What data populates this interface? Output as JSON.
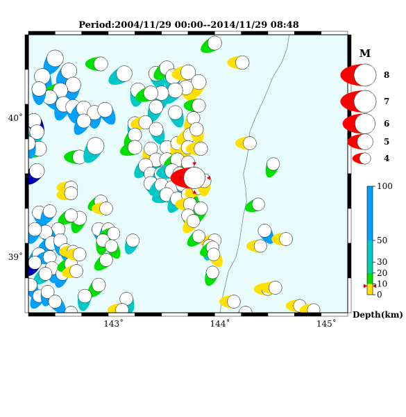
{
  "title": "Period:2004/11/29 00:00--2014/11/29 08:48",
  "map": {
    "lon_range": [
      142.2,
      145.2
    ],
    "lat_range": [
      38.6,
      40.6
    ],
    "lon_ticks": [
      {
        "value": 143,
        "label": "143˚"
      },
      {
        "value": 144,
        "label": "144˚"
      },
      {
        "value": 145,
        "label": "145˚"
      }
    ],
    "lat_ticks": [
      {
        "value": 40,
        "label": "40˚"
      },
      {
        "value": 39,
        "label": "39˚"
      }
    ],
    "ocean_color": "#e8fcfc",
    "coast_color": "#6e8c8c",
    "coastline": [
      [
        144.65,
        40.6
      ],
      [
        144.63,
        40.5
      ],
      [
        144.58,
        40.4
      ],
      [
        144.5,
        40.3
      ],
      [
        144.42,
        40.15
      ],
      [
        144.33,
        40.0
      ],
      [
        144.28,
        39.9
      ],
      [
        144.27,
        39.8
      ],
      [
        144.25,
        39.7
      ],
      [
        144.22,
        39.6
      ],
      [
        144.24,
        39.5
      ],
      [
        144.25,
        39.4
      ],
      [
        144.22,
        39.3
      ],
      [
        144.2,
        39.2
      ],
      [
        144.18,
        39.1
      ],
      [
        144.15,
        39.0
      ],
      [
        144.08,
        38.9
      ],
      [
        144.05,
        38.8
      ],
      [
        144.02,
        38.7
      ],
      [
        144.0,
        38.6
      ]
    ]
  },
  "depth_colors": {
    "shallow": "#ffe000",
    "d20": "#00e000",
    "d30": "#00c8c8",
    "d50": "#00a0ff",
    "deep": "#0000c0",
    "largest": "#ff0000"
  },
  "events": [
    {
      "lon": 142.45,
      "lat": 40.43,
      "mag": 5.2,
      "depth": "d50",
      "rot": 30
    },
    {
      "lon": 142.33,
      "lat": 40.3,
      "mag": 5.0,
      "depth": "d50",
      "rot": -20
    },
    {
      "lon": 142.58,
      "lat": 40.34,
      "mag": 5.0,
      "depth": "d50",
      "rot": 40
    },
    {
      "lon": 142.62,
      "lat": 40.24,
      "mag": 4.9,
      "depth": "d50",
      "rot": 10
    },
    {
      "lon": 142.5,
      "lat": 40.2,
      "mag": 4.8,
      "depth": "d20",
      "rot": 80
    },
    {
      "lon": 142.4,
      "lat": 40.15,
      "mag": 4.7,
      "depth": "d50",
      "rot": -40
    },
    {
      "lon": 142.53,
      "lat": 40.1,
      "mag": 4.9,
      "depth": "d50",
      "rot": 20
    },
    {
      "lon": 142.62,
      "lat": 40.08,
      "mag": 4.8,
      "depth": "d50",
      "rot": -10
    },
    {
      "lon": 142.72,
      "lat": 40.07,
      "mag": 4.8,
      "depth": "d50",
      "rot": 50
    },
    {
      "lon": 142.82,
      "lat": 40.04,
      "mag": 4.7,
      "depth": "d50",
      "rot": 0
    },
    {
      "lon": 142.72,
      "lat": 39.98,
      "mag": 4.6,
      "depth": "d50",
      "rot": 30
    },
    {
      "lon": 142.92,
      "lat": 40.06,
      "mag": 4.8,
      "depth": "d50",
      "rot": -30
    },
    {
      "lon": 142.88,
      "lat": 40.39,
      "mag": 4.6,
      "depth": "d20",
      "rot": 90
    },
    {
      "lon": 142.3,
      "lat": 40.21,
      "mag": 4.7,
      "depth": "d50",
      "rot": 0
    },
    {
      "lon": 142.25,
      "lat": 39.98,
      "mag": 4.8,
      "depth": "deep",
      "rot": -30
    },
    {
      "lon": 142.28,
      "lat": 39.9,
      "mag": 4.7,
      "depth": "d30",
      "rot": 20
    },
    {
      "lon": 142.3,
      "lat": 39.78,
      "mag": 4.8,
      "depth": "d20",
      "rot": 70
    },
    {
      "lon": 142.2,
      "lat": 39.82,
      "mag": 4.6,
      "depth": "d50",
      "rot": -10
    },
    {
      "lon": 142.28,
      "lat": 39.62,
      "mag": 4.8,
      "depth": "deep",
      "rot": 40
    },
    {
      "lon": 142.68,
      "lat": 39.72,
      "mag": 4.6,
      "depth": "d20",
      "rot": 90
    },
    {
      "lon": 142.83,
      "lat": 39.8,
      "mag": 5.3,
      "depth": "d30",
      "rot": 30
    },
    {
      "lon": 143.1,
      "lat": 40.32,
      "mag": 5.0,
      "depth": "d30",
      "rot": 60
    },
    {
      "lon": 143.23,
      "lat": 40.2,
      "mag": 4.8,
      "depth": "d30",
      "rot": 10
    },
    {
      "lon": 143.4,
      "lat": 40.32,
      "mag": 4.8,
      "depth": "d30",
      "rot": -20
    },
    {
      "lon": 143.5,
      "lat": 40.36,
      "mag": 4.7,
      "depth": "d20",
      "rot": 50
    },
    {
      "lon": 143.56,
      "lat": 40.3,
      "mag": 4.9,
      "depth": "d30",
      "rot": 10
    },
    {
      "lon": 143.7,
      "lat": 40.33,
      "mag": 4.8,
      "depth": "shallow",
      "rot": 80
    },
    {
      "lon": 143.8,
      "lat": 40.26,
      "mag": 4.8,
      "depth": "shallow",
      "rot": 20
    },
    {
      "lon": 143.68,
      "lat": 40.22,
      "mag": 4.7,
      "depth": "shallow",
      "rot": -30
    },
    {
      "lon": 143.58,
      "lat": 40.2,
      "mag": 4.8,
      "depth": "d30",
      "rot": 40
    },
    {
      "lon": 143.45,
      "lat": 40.18,
      "mag": 4.7,
      "depth": "d30",
      "rot": 0
    },
    {
      "lon": 143.35,
      "lat": 40.18,
      "mag": 4.7,
      "depth": "d20",
      "rot": 70
    },
    {
      "lon": 143.4,
      "lat": 40.08,
      "mag": 4.6,
      "depth": "d30",
      "rot": 20
    },
    {
      "lon": 143.58,
      "lat": 40.04,
      "mag": 4.6,
      "depth": "d30",
      "rot": -20
    },
    {
      "lon": 143.8,
      "lat": 40.09,
      "mag": 4.5,
      "depth": "d20",
      "rot": 90
    },
    {
      "lon": 143.75,
      "lat": 40.0,
      "mag": 4.4,
      "depth": "shallow",
      "rot": 30
    },
    {
      "lon": 143.95,
      "lat": 40.54,
      "mag": 4.6,
      "depth": "d20",
      "rot": 60
    },
    {
      "lon": 144.21,
      "lat": 40.4,
      "mag": 4.5,
      "depth": "shallow",
      "rot": 90
    },
    {
      "lon": 143.2,
      "lat": 39.96,
      "mag": 4.6,
      "depth": "d30",
      "rot": 10
    },
    {
      "lon": 143.3,
      "lat": 39.97,
      "mag": 4.5,
      "depth": "shallow",
      "rot": 80
    },
    {
      "lon": 143.4,
      "lat": 39.92,
      "mag": 4.6,
      "depth": "d30",
      "rot": -20
    },
    {
      "lon": 143.2,
      "lat": 39.88,
      "mag": 4.5,
      "depth": "d20",
      "rot": 40
    },
    {
      "lon": 143.2,
      "lat": 39.79,
      "mag": 4.6,
      "depth": "d20",
      "rot": 70
    },
    {
      "lon": 143.35,
      "lat": 39.78,
      "mag": 4.5,
      "depth": "shallow",
      "rot": 20
    },
    {
      "lon": 143.5,
      "lat": 39.79,
      "mag": 4.5,
      "depth": "d20",
      "rot": -40
    },
    {
      "lon": 143.6,
      "lat": 39.82,
      "mag": 4.5,
      "depth": "shallow",
      "rot": 10
    },
    {
      "lon": 143.72,
      "lat": 39.88,
      "mag": 4.6,
      "depth": "shallow",
      "rot": 60
    },
    {
      "lon": 143.78,
      "lat": 39.92,
      "mag": 4.5,
      "depth": "shallow",
      "rot": -10
    },
    {
      "lon": 143.7,
      "lat": 39.79,
      "mag": 4.5,
      "depth": "shallow",
      "rot": 40
    },
    {
      "lon": 143.82,
      "lat": 39.78,
      "mag": 4.5,
      "depth": "shallow",
      "rot": 90
    },
    {
      "lon": 143.4,
      "lat": 39.7,
      "mag": 4.6,
      "depth": "d30",
      "rot": 20
    },
    {
      "lon": 143.5,
      "lat": 39.7,
      "mag": 4.7,
      "depth": "d30",
      "rot": -30
    },
    {
      "lon": 143.6,
      "lat": 39.7,
      "mag": 4.6,
      "depth": "d20",
      "rot": 60
    },
    {
      "lon": 143.7,
      "lat": 39.68,
      "mag": 4.5,
      "depth": "d20",
      "rot": 10
    },
    {
      "lon": 143.3,
      "lat": 39.66,
      "mag": 4.6,
      "depth": "d30",
      "rot": 40
    },
    {
      "lon": 143.35,
      "lat": 39.6,
      "mag": 4.5,
      "depth": "d20",
      "rot": -20
    },
    {
      "lon": 143.45,
      "lat": 39.6,
      "mag": 4.6,
      "depth": "d30",
      "rot": 30
    },
    {
      "lon": 143.55,
      "lat": 39.62,
      "mag": 4.7,
      "depth": "d30",
      "rot": 80
    },
    {
      "lon": 143.62,
      "lat": 39.6,
      "mag": 4.5,
      "depth": "shallow",
      "rot": 10
    },
    {
      "lon": 143.35,
      "lat": 39.53,
      "mag": 4.6,
      "depth": "d30",
      "rot": -30
    },
    {
      "lon": 143.45,
      "lat": 39.52,
      "mag": 4.5,
      "depth": "d30",
      "rot": 50
    },
    {
      "lon": 143.55,
      "lat": 39.5,
      "mag": 4.6,
      "depth": "d20",
      "rot": 20
    },
    {
      "lon": 143.65,
      "lat": 39.52,
      "mag": 4.5,
      "depth": "d30",
      "rot": -10
    },
    {
      "lon": 143.5,
      "lat": 39.45,
      "mag": 4.6,
      "depth": "d30",
      "rot": 70
    },
    {
      "lon": 143.6,
      "lat": 39.42,
      "mag": 4.6,
      "depth": "d30",
      "rot": 30
    },
    {
      "lon": 143.7,
      "lat": 39.45,
      "mag": 4.5,
      "depth": "d20",
      "rot": -40
    },
    {
      "lon": 143.8,
      "lat": 39.5,
      "mag": 4.6,
      "depth": "shallow",
      "rot": 60
    },
    {
      "lon": 143.85,
      "lat": 39.55,
      "mag": 4.6,
      "depth": "shallow",
      "rot": 0
    },
    {
      "lon": 143.72,
      "lat": 39.38,
      "mag": 4.5,
      "depth": "shallow",
      "rot": 90
    },
    {
      "lon": 143.82,
      "lat": 39.35,
      "mag": 4.5,
      "depth": "d20",
      "rot": 20
    },
    {
      "lon": 143.7,
      "lat": 39.3,
      "mag": 4.4,
      "depth": "d20",
      "rot": -20
    },
    {
      "lon": 143.75,
      "lat": 39.26,
      "mag": 4.4,
      "depth": "shallow",
      "rot": 40
    },
    {
      "lon": 143.95,
      "lat": 39.12,
      "mag": 4.4,
      "depth": "shallow",
      "rot": 80
    },
    {
      "lon": 143.9,
      "lat": 39.08,
      "mag": 4.4,
      "depth": "d30",
      "rot": 10
    },
    {
      "lon": 143.93,
      "lat": 39.07,
      "mag": 4.3,
      "depth": "d20",
      "rot": 60
    },
    {
      "lon": 143.94,
      "lat": 39.02,
      "mag": 4.3,
      "depth": "shallow",
      "rot": -30
    },
    {
      "lon": 143.93,
      "lat": 38.89,
      "mag": 4.3,
      "depth": "d20",
      "rot": 20
    },
    {
      "lon": 143.8,
      "lat": 39.15,
      "mag": 4.3,
      "depth": "d20",
      "rot": 50
    },
    {
      "lon": 144.28,
      "lat": 39.82,
      "mag": 4.4,
      "depth": "shallow",
      "rot": 90
    },
    {
      "lon": 144.5,
      "lat": 39.67,
      "mag": 4.3,
      "depth": "d20",
      "rot": 20
    },
    {
      "lon": 144.36,
      "lat": 39.38,
      "mag": 4.3,
      "depth": "d20",
      "rot": 70
    },
    {
      "lon": 144.42,
      "lat": 39.19,
      "mag": 4.4,
      "depth": "d50",
      "rot": -30
    },
    {
      "lon": 144.38,
      "lat": 39.08,
      "mag": 4.3,
      "depth": "shallow",
      "rot": 90
    },
    {
      "lon": 144.62,
      "lat": 39.13,
      "mag": 4.4,
      "depth": "shallow",
      "rot": 90
    },
    {
      "lon": 144.45,
      "lat": 38.77,
      "mag": 4.3,
      "depth": "shallow",
      "rot": 90
    },
    {
      "lon": 144.52,
      "lat": 38.78,
      "mag": 4.4,
      "depth": "shallow",
      "rot": 90
    },
    {
      "lon": 144.13,
      "lat": 38.68,
      "mag": 4.4,
      "depth": "shallow",
      "rot": 90
    },
    {
      "lon": 144.24,
      "lat": 38.6,
      "mag": 4.4,
      "depth": "d20",
      "rot": 30
    },
    {
      "lon": 144.75,
      "lat": 38.65,
      "mag": 4.3,
      "depth": "shallow",
      "rot": 90
    },
    {
      "lon": 144.88,
      "lat": 38.62,
      "mag": 4.3,
      "depth": "shallow",
      "rot": 90
    },
    {
      "lon": 143.18,
      "lat": 39.12,
      "mag": 4.4,
      "depth": "d30",
      "rot": 20
    },
    {
      "lon": 143.12,
      "lat": 38.7,
      "mag": 4.4,
      "depth": "d30",
      "rot": -20
    },
    {
      "lon": 143.08,
      "lat": 38.62,
      "mag": 4.4,
      "depth": "shallow",
      "rot": 90
    },
    {
      "lon": 142.86,
      "lat": 38.8,
      "mag": 4.5,
      "depth": "d20",
      "rot": 40
    },
    {
      "lon": 142.73,
      "lat": 38.72,
      "mag": 4.5,
      "depth": "d30",
      "rot": 10
    },
    {
      "lon": 142.88,
      "lat": 39.4,
      "mag": 4.4,
      "depth": "d20",
      "rot": 60
    },
    {
      "lon": 142.93,
      "lat": 39.35,
      "mag": 4.4,
      "depth": "shallow",
      "rot": 90
    },
    {
      "lon": 142.86,
      "lat": 39.2,
      "mag": 4.5,
      "depth": "d50",
      "rot": -20
    },
    {
      "lon": 142.95,
      "lat": 39.2,
      "mag": 4.4,
      "depth": "d50",
      "rot": 30
    },
    {
      "lon": 143.0,
      "lat": 39.17,
      "mag": 4.3,
      "depth": "d20",
      "rot": 80
    },
    {
      "lon": 142.9,
      "lat": 39.12,
      "mag": 4.4,
      "depth": "d20",
      "rot": 10
    },
    {
      "lon": 142.98,
      "lat": 39.08,
      "mag": 4.3,
      "depth": "d20",
      "rot": -30
    },
    {
      "lon": 142.93,
      "lat": 38.98,
      "mag": 4.4,
      "depth": "d20",
      "rot": 50
    },
    {
      "lon": 142.6,
      "lat": 39.5,
      "mag": 4.4,
      "depth": "shallow",
      "rot": 90
    },
    {
      "lon": 142.6,
      "lat": 39.46,
      "mag": 4.4,
      "depth": "shallow",
      "rot": 80
    },
    {
      "lon": 142.68,
      "lat": 39.28,
      "mag": 4.6,
      "depth": "d20",
      "rot": 20
    },
    {
      "lon": 142.6,
      "lat": 39.3,
      "mag": 4.4,
      "depth": "d20",
      "rot": 60
    },
    {
      "lon": 142.3,
      "lat": 39.32,
      "mag": 4.5,
      "depth": "d50",
      "rot": -20
    },
    {
      "lon": 142.4,
      "lat": 39.33,
      "mag": 4.4,
      "depth": "d50",
      "rot": 30
    },
    {
      "lon": 142.48,
      "lat": 39.2,
      "mag": 4.5,
      "depth": "d50",
      "rot": 10
    },
    {
      "lon": 142.36,
      "lat": 39.18,
      "mag": 4.6,
      "depth": "d50",
      "rot": -40
    },
    {
      "lon": 142.26,
      "lat": 39.2,
      "mag": 4.5,
      "depth": "d50",
      "rot": 20
    },
    {
      "lon": 142.42,
      "lat": 39.1,
      "mag": 4.6,
      "depth": "d50",
      "rot": 60
    },
    {
      "lon": 142.5,
      "lat": 39.12,
      "mag": 4.5,
      "depth": "d50",
      "rot": 0
    },
    {
      "lon": 142.55,
      "lat": 39.05,
      "mag": 4.4,
      "depth": "d50",
      "rot": -20
    },
    {
      "lon": 142.3,
      "lat": 39.02,
      "mag": 4.5,
      "depth": "d50",
      "rot": 40
    },
    {
      "lon": 142.4,
      "lat": 39.0,
      "mag": 4.4,
      "depth": "d50",
      "rot": 80
    },
    {
      "lon": 142.26,
      "lat": 38.96,
      "mag": 4.4,
      "depth": "deep",
      "rot": 30
    },
    {
      "lon": 142.42,
      "lat": 38.92,
      "mag": 4.5,
      "depth": "d50",
      "rot": -10
    },
    {
      "lon": 142.36,
      "lat": 38.88,
      "mag": 4.4,
      "depth": "d30",
      "rot": 50
    },
    {
      "lon": 142.52,
      "lat": 38.88,
      "mag": 4.4,
      "depth": "d50",
      "rot": 20
    },
    {
      "lon": 142.6,
      "lat": 38.95,
      "mag": 4.4,
      "depth": "d20",
      "rot": 70
    },
    {
      "lon": 142.62,
      "lat": 39.04,
      "mag": 4.3,
      "depth": "shallow",
      "rot": 90
    },
    {
      "lon": 142.65,
      "lat": 38.9,
      "mag": 4.4,
      "depth": "shallow",
      "rot": 80
    },
    {
      "lon": 142.68,
      "lat": 39.02,
      "mag": 4.4,
      "depth": "shallow",
      "rot": 90
    },
    {
      "lon": 142.22,
      "lat": 38.8,
      "mag": 4.4,
      "depth": "d50",
      "rot": -20
    },
    {
      "lon": 142.3,
      "lat": 38.72,
      "mag": 4.3,
      "depth": "d50",
      "rot": 30
    },
    {
      "lon": 142.38,
      "lat": 38.75,
      "mag": 4.4,
      "depth": "d50",
      "rot": 10
    },
    {
      "lon": 142.45,
      "lat": 38.68,
      "mag": 4.4,
      "depth": "d50",
      "rot": -40
    },
    {
      "lon": 142.6,
      "lat": 38.6,
      "mag": 4.4,
      "depth": "d50",
      "rot": 20
    }
  ],
  "largest_event": {
    "lon": 143.76,
    "lat": 39.57,
    "mag": 6.3,
    "depth": "largest",
    "rot": 90
  },
  "legend": {
    "title": "M",
    "items": [
      {
        "mag": 8,
        "label": "8"
      },
      {
        "mag": 7,
        "label": "7"
      },
      {
        "mag": 6,
        "label": "6"
      },
      {
        "mag": 5,
        "label": "5"
      },
      {
        "mag": 4,
        "label": "4"
      }
    ]
  },
  "colorbar": {
    "max_depth": 100,
    "stops": [
      {
        "depth": 0,
        "color": "#ffe000"
      },
      {
        "depth": 10,
        "color": "#00e000"
      },
      {
        "depth": 20,
        "color": "#00d0a0"
      },
      {
        "depth": 30,
        "color": "#00c8c8"
      },
      {
        "depth": 50,
        "color": "#00a0ff"
      },
      {
        "depth": 100,
        "color": "#0000b0"
      }
    ],
    "ticks": [
      {
        "depth": 100,
        "label": "100"
      },
      {
        "depth": 50,
        "label": "50"
      },
      {
        "depth": 30,
        "label": "30"
      },
      {
        "depth": 20,
        "label": "20"
      },
      {
        "depth": 10,
        "label": "10"
      },
      {
        "depth": 0,
        "label": "0"
      }
    ],
    "marker_depth": 8,
    "label": "Depth(km)"
  }
}
